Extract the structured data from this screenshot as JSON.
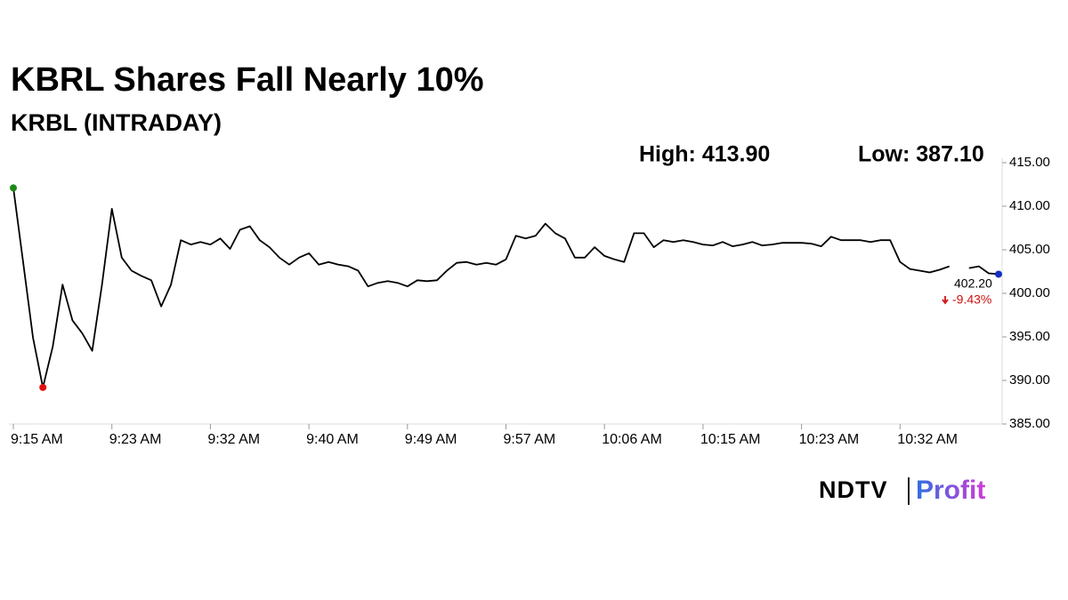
{
  "chart_data": {
    "type": "line",
    "title": "KBRL Shares Fall Nearly 10%",
    "subtitle": "KRBL (INTRADAY)",
    "high_label": "High: 413.90",
    "low_label": "Low: 387.10",
    "last_label": "402.20",
    "change_label": "-9.43%",
    "brand": {
      "left": "NDTV",
      "right": "Profit"
    },
    "categories": [
      "9:15 AM",
      null,
      null,
      null,
      null,
      null,
      null,
      null,
      null,
      null,
      "9:23 AM",
      null,
      null,
      null,
      null,
      null,
      null,
      null,
      null,
      null,
      "9:32 AM",
      null,
      null,
      null,
      null,
      null,
      null,
      null,
      null,
      null,
      "9:40 AM",
      null,
      null,
      null,
      null,
      null,
      null,
      null,
      null,
      null,
      "9:49 AM",
      null,
      null,
      null,
      null,
      null,
      null,
      null,
      null,
      null,
      "9:57 AM",
      null,
      null,
      null,
      null,
      null,
      null,
      null,
      null,
      null,
      "10:06 AM",
      null,
      null,
      null,
      null,
      null,
      null,
      null,
      null,
      null,
      "10:15 AM",
      null,
      null,
      null,
      null,
      null,
      null,
      null,
      null,
      null,
      "10:23 AM",
      null,
      null,
      null,
      null,
      null,
      null,
      null,
      null,
      null,
      "10:32 AM",
      null,
      null,
      null,
      null,
      null,
      null,
      null,
      null,
      null,
      null
    ],
    "series": [
      {
        "name": "KRBL",
        "color": "#000000",
        "values": [
          412.1,
          403.5,
          394.9,
          389.2,
          393.9,
          401.0,
          396.9,
          395.4,
          393.4,
          401.0,
          409.7,
          404.1,
          402.6,
          402.0,
          401.5,
          398.5,
          401.0,
          406.1,
          405.6,
          405.9,
          405.6,
          406.3,
          405.1,
          407.3,
          407.7,
          406.1,
          405.3,
          404.1,
          403.3,
          404.1,
          404.6,
          403.3,
          403.6,
          403.3,
          403.1,
          402.6,
          400.8,
          401.2,
          401.4,
          401.2,
          400.8,
          401.5,
          401.4,
          401.5,
          402.6,
          403.5,
          403.6,
          403.3,
          403.5,
          403.3,
          403.9,
          406.6,
          406.3,
          406.6,
          408.0,
          406.9,
          406.3,
          404.1,
          404.1,
          405.3,
          404.3,
          403.9,
          403.6,
          406.9,
          406.9,
          405.3,
          406.1,
          405.9,
          406.1,
          405.9,
          405.6,
          405.5,
          405.9,
          405.4,
          405.6,
          405.9,
          405.5,
          405.6,
          405.8,
          405.8,
          405.8,
          405.7,
          405.4,
          406.5,
          406.1,
          406.1,
          406.1,
          405.9,
          406.1,
          406.1,
          403.6,
          402.8,
          402.6,
          402.4,
          402.7,
          403.1,
          null,
          402.9,
          403.1,
          402.3,
          402.2
        ]
      }
    ],
    "high_color": "#1a8a1a",
    "low_color": "#e01010",
    "last_color": "#1030c0",
    "change_color": "#d01010",
    "ylim": [
      385,
      415
    ],
    "yticks": [
      {
        "value": 385,
        "label": "385.00"
      },
      {
        "value": 390,
        "label": "390.00"
      },
      {
        "value": 395,
        "label": "395.00"
      },
      {
        "value": 400,
        "label": "400.00"
      },
      {
        "value": 405,
        "label": "405.00"
      },
      {
        "value": 410,
        "label": "410.00"
      },
      {
        "value": 415,
        "label": "415.00"
      }
    ],
    "y_axis_side": "right"
  }
}
